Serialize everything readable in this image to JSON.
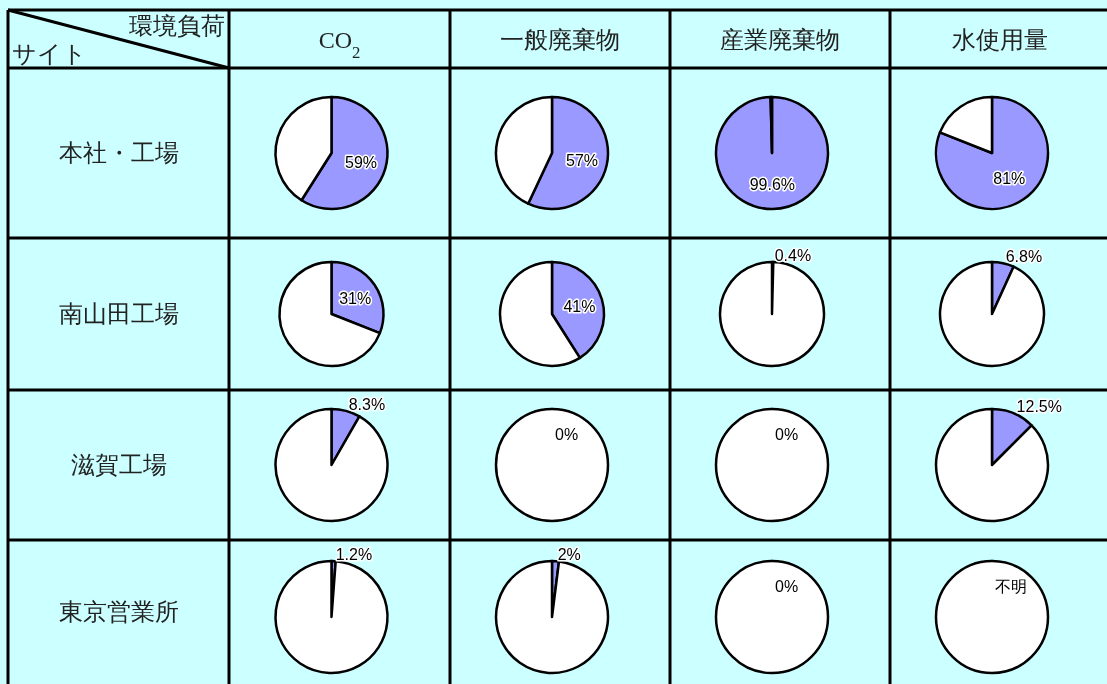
{
  "chart_data": [
    {
      "type": "other",
      "xlabel": "環境負荷",
      "ylabel": "サイト",
      "categories": [
        "CO$_{2}$",
        "一般廃棄物",
        "産業廃棄物",
        "水使用量"
      ],
      "y_categories": [
        "本社・工場",
        "南山田工場",
        "滋賀工場",
        "東京営業所"
      ]
    },
    {
      "type": "pie",
      "categories": [
        null,
        null
      ],
      "values": [
        59,
        41
      ],
      "colors": [
        "#9999ff",
        "#ffffff"
      ],
      "value_labels": [
        "59%",
        null
      ]
    },
    {
      "type": "pie",
      "categories": [
        null,
        null
      ],
      "values": [
        57,
        43
      ],
      "colors": [
        "#9999ff",
        "#ffffff"
      ],
      "value_labels": [
        "57%",
        null
      ]
    },
    {
      "type": "pie",
      "categories": [
        null,
        null
      ],
      "values": [
        99.6,
        0.4
      ],
      "colors": [
        "#9999ff",
        "#ffffff"
      ],
      "value_labels": [
        "99.6%",
        null
      ]
    },
    {
      "type": "pie",
      "categories": [
        null,
        null
      ],
      "values": [
        81,
        19
      ],
      "colors": [
        "#9999ff",
        "#ffffff"
      ],
      "value_labels": [
        "81%",
        null
      ]
    },
    {
      "type": "pie",
      "categories": [
        null,
        null
      ],
      "values": [
        31,
        69
      ],
      "colors": [
        "#9999ff",
        "#ffffff"
      ],
      "value_labels": [
        "31%",
        null
      ]
    },
    {
      "type": "pie",
      "categories": [
        null,
        null
      ],
      "values": [
        41,
        59
      ],
      "colors": [
        "#9999ff",
        "#ffffff"
      ],
      "value_labels": [
        "41%",
        null
      ]
    },
    {
      "type": "pie",
      "categories": [
        null,
        null
      ],
      "values": [
        0.4,
        99.6
      ],
      "colors": [
        "#9999ff",
        "#ffffff"
      ],
      "value_labels": [
        "0.4%",
        null
      ]
    },
    {
      "type": "pie",
      "categories": [
        null,
        null
      ],
      "values": [
        6.8,
        93.2
      ],
      "colors": [
        "#9999ff",
        "#ffffff"
      ],
      "value_labels": [
        "6.8%",
        null
      ]
    },
    {
      "type": "pie",
      "categories": [
        null,
        null
      ],
      "values": [
        8.3,
        91.7
      ],
      "colors": [
        "#9999ff",
        "#ffffff"
      ],
      "value_labels": [
        "8.3%",
        null
      ]
    },
    {
      "type": "pie",
      "categories": [
        null,
        null
      ],
      "values": [
        0,
        100
      ],
      "colors": [
        "#9999ff",
        "#ffffff"
      ],
      "value_labels": [
        "0%",
        null
      ]
    },
    {
      "type": "pie",
      "categories": [
        null,
        null
      ],
      "values": [
        0,
        100
      ],
      "colors": [
        "#9999ff",
        "#ffffff"
      ],
      "value_labels": [
        "0%",
        null
      ]
    },
    {
      "type": "pie",
      "categories": [
        null,
        null
      ],
      "values": [
        12.5,
        87.5
      ],
      "colors": [
        "#9999ff",
        "#ffffff"
      ],
      "value_labels": [
        "12.5%",
        null
      ]
    },
    {
      "type": "pie",
      "categories": [
        null,
        null
      ],
      "values": [
        1.2,
        98.8
      ],
      "colors": [
        "#9999ff",
        "#ffffff"
      ],
      "value_labels": [
        "1.2%",
        null
      ]
    },
    {
      "type": "pie",
      "categories": [
        null,
        null
      ],
      "values": [
        2,
        98
      ],
      "colors": [
        "#9999ff",
        "#ffffff"
      ],
      "value_labels": [
        "2%",
        null
      ]
    },
    {
      "type": "pie",
      "categories": [
        null,
        null
      ],
      "values": [
        0,
        100
      ],
      "colors": [
        "#9999ff",
        "#ffffff"
      ],
      "value_labels": [
        "0%",
        null
      ]
    },
    {
      "type": "pie",
      "categories": [
        null,
        null
      ],
      "values": [
        0,
        100
      ],
      "colors": [
        "#9999ff",
        "#ffffff"
      ],
      "value_labels": [
        "不明",
        null
      ]
    }
  ]
}
